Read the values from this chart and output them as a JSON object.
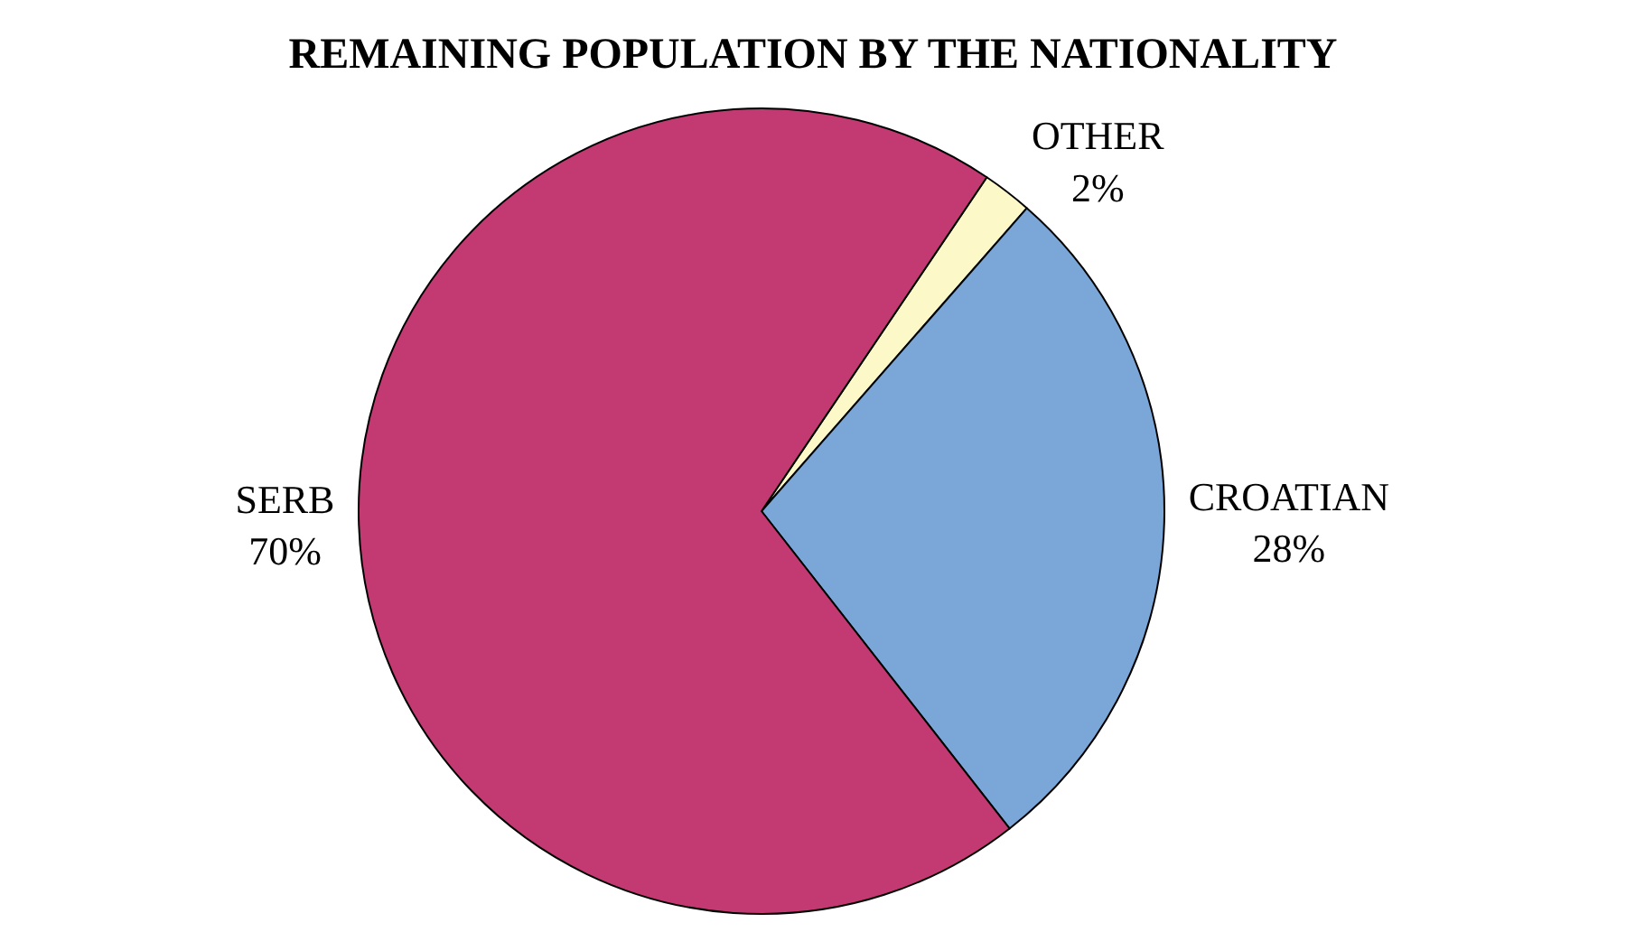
{
  "chart_data": {
    "type": "pie",
    "title": "REMAINING POPULATION BY THE NATIONALITY",
    "categories": [
      "OTHER",
      "CROATIAN",
      "SERB"
    ],
    "values": [
      2,
      28,
      70
    ],
    "value_labels": [
      "2%",
      "28%",
      "70%"
    ],
    "colors": [
      "#fdf8c8",
      "#7aa6d8",
      "#c33a72"
    ],
    "legend": false
  }
}
